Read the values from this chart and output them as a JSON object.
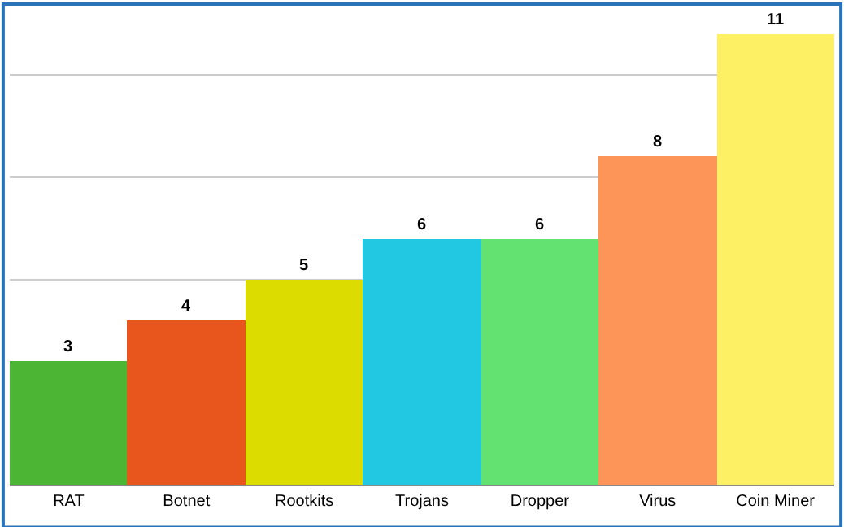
{
  "chart_data": {
    "type": "bar",
    "categories": [
      "RAT",
      "Botnet",
      "Rootkits",
      "Trojans",
      "Dropper",
      "Virus",
      "Coin Miner"
    ],
    "values": [
      3,
      4,
      5,
      6,
      6,
      8,
      11
    ],
    "colors": [
      "#4db534",
      "#e8561d",
      "#dcdc00",
      "#22c8e2",
      "#63e272",
      "#fe9558",
      "#fef064"
    ],
    "tick_labels": "x",
    "grid": "y",
    "data_labels": true
  }
}
